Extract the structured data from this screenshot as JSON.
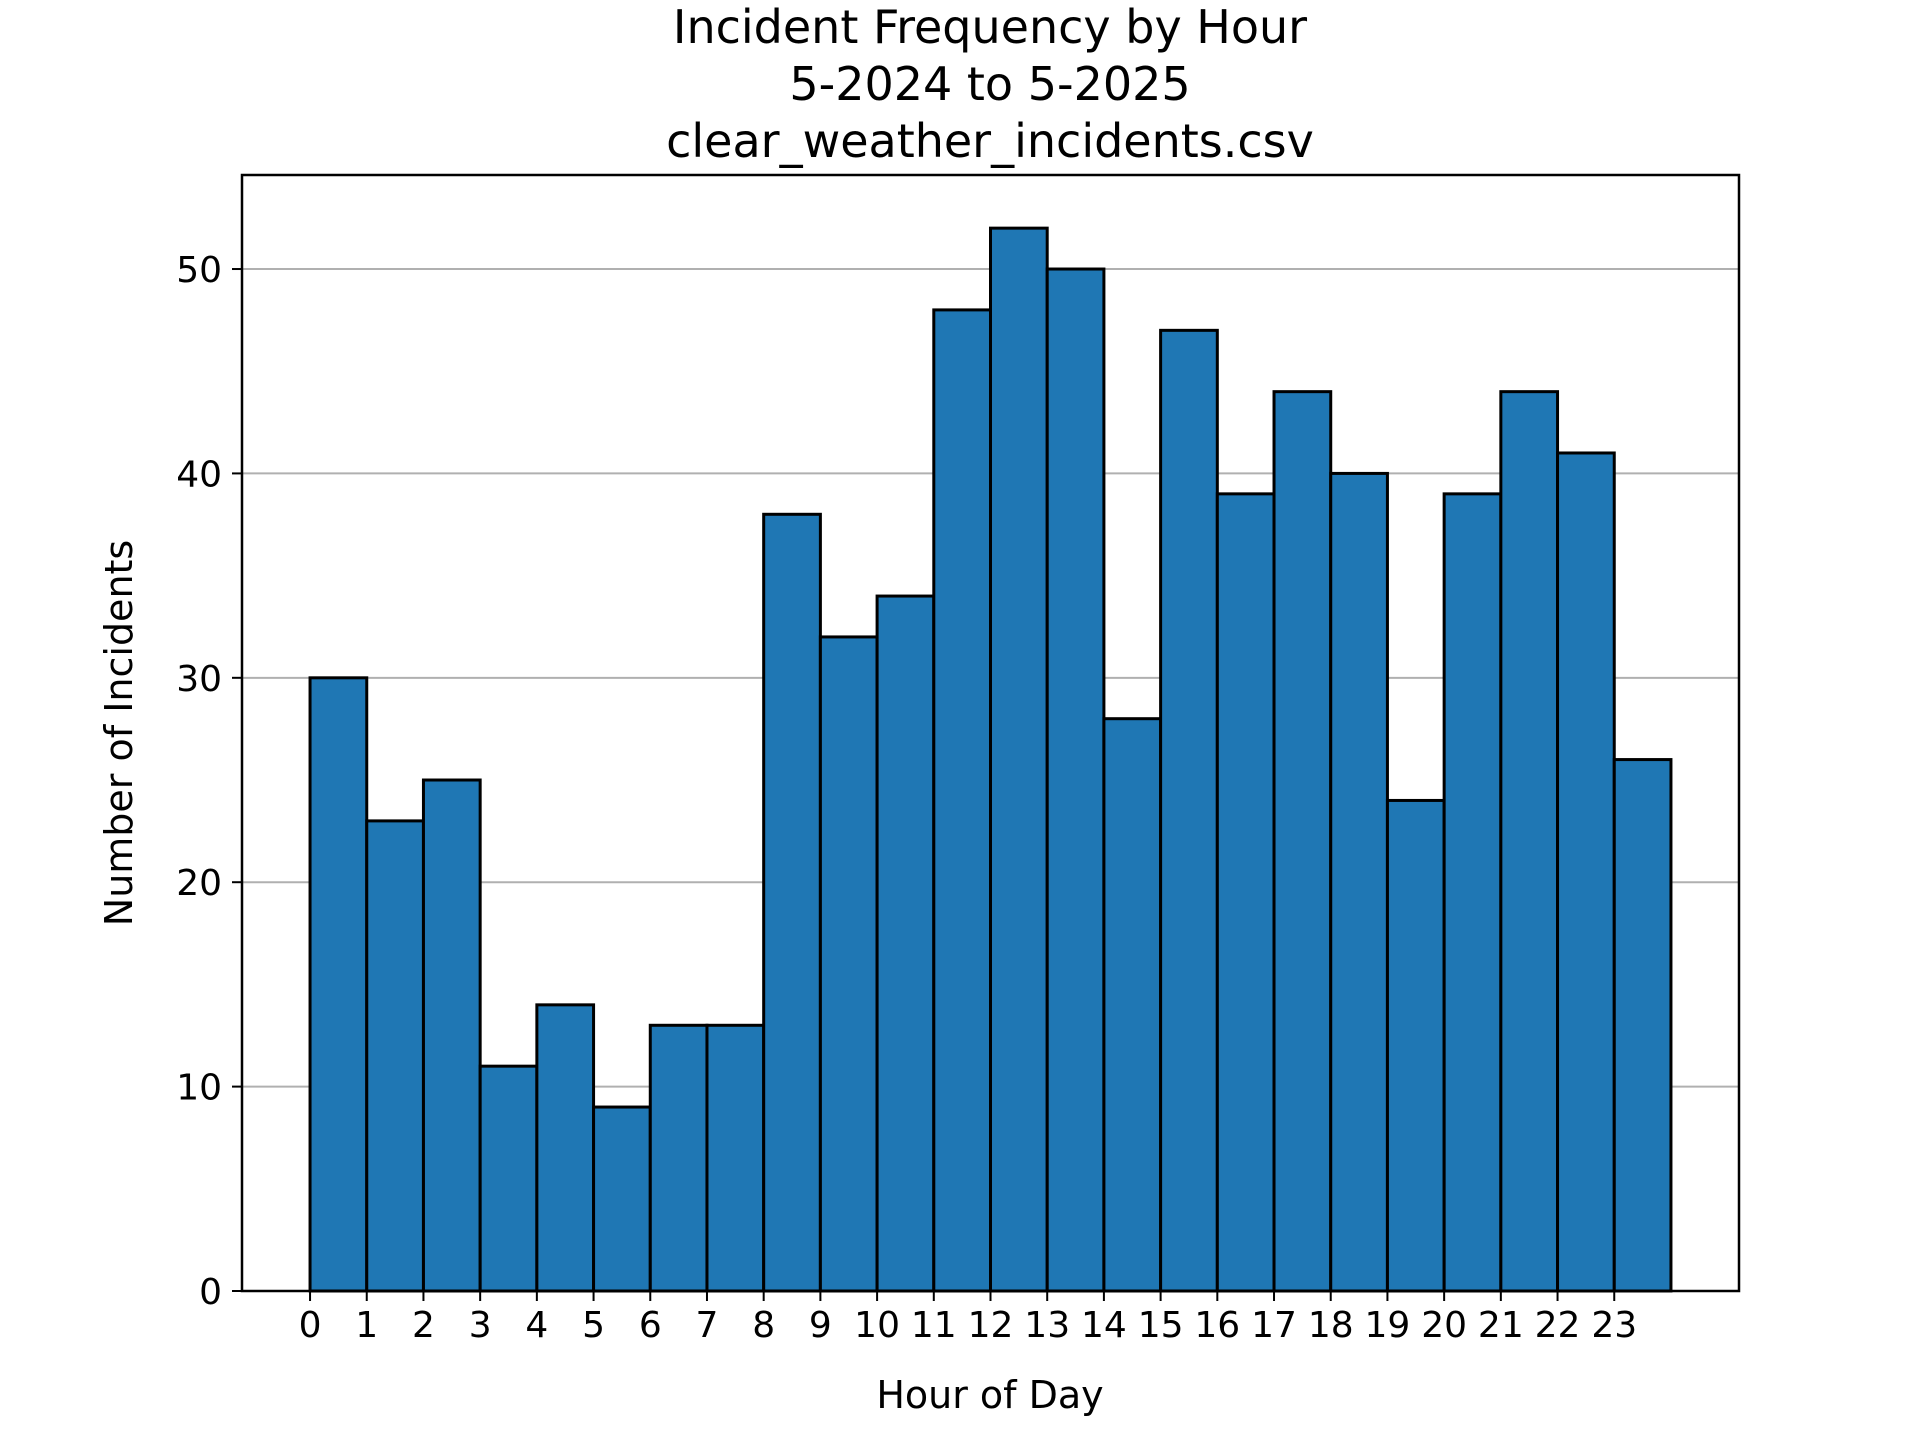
{
  "chart_data": {
    "type": "bar",
    "title": [
      "Incident Frequency by Hour",
      "5-2024 to 5-2025",
      "clear_weather_incidents.csv"
    ],
    "xlabel": "Hour of Day",
    "ylabel": "Number of Incidents",
    "categories": [
      "0",
      "1",
      "2",
      "3",
      "4",
      "5",
      "6",
      "7",
      "8",
      "9",
      "10",
      "11",
      "12",
      "13",
      "14",
      "15",
      "16",
      "17",
      "18",
      "19",
      "20",
      "21",
      "22",
      "23"
    ],
    "values": [
      30,
      23,
      25,
      11,
      14,
      9,
      13,
      13,
      38,
      32,
      34,
      48,
      52,
      50,
      28,
      47,
      39,
      44,
      40,
      24,
      39,
      44,
      41,
      26
    ],
    "xlim": [
      -1.2,
      25.2
    ],
    "ylim": [
      0,
      54.6
    ],
    "yticks": [
      0,
      10,
      20,
      30,
      40,
      50
    ],
    "ytick_labels": [
      "0",
      "10",
      "20",
      "30",
      "40",
      "50"
    ],
    "grid": "y",
    "legend": "none",
    "colors": {
      "bar_fill": "#1f77b4",
      "bar_edge": "#000000",
      "grid": "#b0b0b0"
    }
  }
}
